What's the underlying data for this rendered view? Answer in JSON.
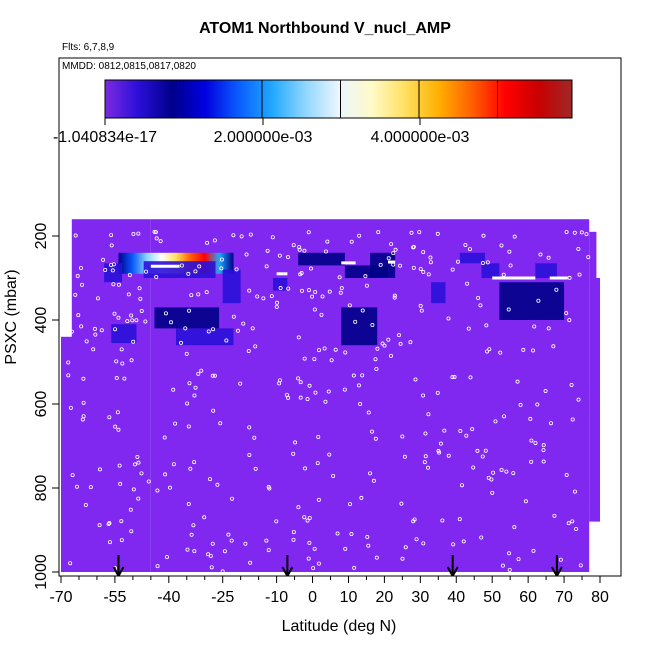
{
  "title": "ATOM1 Northbound V_nucl_AMP",
  "flights_note": "Flts: 6,7,8,9",
  "dates_note": "MMDD: 0812,0815,0817,0820",
  "colorbar": {
    "tick_labels": [
      "-1.040834e-17",
      "2.000000e-03",
      "4.000000e-03"
    ],
    "colors": [
      "#7b2be0",
      "#2a0fd8",
      "#00008a",
      "#0000e0",
      "#0a5cff",
      "#1fa8ff",
      "#8fd6ff",
      "#eaf6ff",
      "#fffac8",
      "#ffe060",
      "#ffb000",
      "#ff6000",
      "#ff0000",
      "#c80000",
      "#a02828"
    ]
  },
  "chart_data": {
    "type": "heatmap",
    "title": "ATOM1 Northbound V_nucl_AMP",
    "xlabel": "Latitude (deg N)",
    "ylabel": "PSXC (mbar)",
    "xlim": [
      -70,
      80
    ],
    "ylim": [
      1000,
      100
    ],
    "x_tick_labels": [
      "-70",
      "-55",
      "-40",
      "-25",
      "-10",
      "0",
      "10",
      "20",
      "30",
      "40",
      "50",
      "60",
      "70",
      "80"
    ],
    "y_tick_labels": [
      "200",
      "400",
      "600",
      "800",
      "1000"
    ],
    "background_color": "#8028f0",
    "arrows_latitude": [
      -54,
      -7,
      39,
      68
    ],
    "cells": [
      {
        "lat0": -54,
        "lat1": -22,
        "p0": 240,
        "p1": 290,
        "value": 0.0058
      },
      {
        "lat0": -58,
        "lat1": -53,
        "p0": 265,
        "p1": 310,
        "value": 0.0006
      },
      {
        "lat0": -47,
        "lat1": -27,
        "p0": 260,
        "p1": 300,
        "value": 0.0005
      },
      {
        "lat0": -44,
        "lat1": -26,
        "p0": 370,
        "p1": 420,
        "value": 0.0007
      },
      {
        "lat0": -38,
        "lat1": -22,
        "p0": 420,
        "p1": 460,
        "value": 0.0006
      },
      {
        "lat0": -56,
        "lat1": -49,
        "p0": 410,
        "p1": 455,
        "value": 0.0005
      },
      {
        "lat0": -25,
        "lat1": -20,
        "p0": 280,
        "p1": 360,
        "value": 0.0004
      },
      {
        "lat0": -11,
        "lat1": -7,
        "p0": 300,
        "p1": 330,
        "value": 0.0004
      },
      {
        "lat0": -4,
        "lat1": 9,
        "p0": 240,
        "p1": 270,
        "value": 0.0007
      },
      {
        "lat0": 9,
        "lat1": 21,
        "p0": 270,
        "p1": 300,
        "value": 0.0008
      },
      {
        "lat0": 8,
        "lat1": 18,
        "p0": 370,
        "p1": 460,
        "value": 0.0008
      },
      {
        "lat0": 16,
        "lat1": 23,
        "p0": 240,
        "p1": 300,
        "value": 0.0007
      },
      {
        "lat0": 33,
        "lat1": 37,
        "p0": 310,
        "p1": 360,
        "value": 0.0004
      },
      {
        "lat0": 41,
        "lat1": 48,
        "p0": 240,
        "p1": 265,
        "value": 0.0004
      },
      {
        "lat0": 47,
        "lat1": 52,
        "p0": 265,
        "p1": 300,
        "value": 0.0004
      },
      {
        "lat0": 52,
        "lat1": 70,
        "p0": 310,
        "p1": 350,
        "value": 0.0009
      },
      {
        "lat0": 52,
        "lat1": 70,
        "p0": 350,
        "p1": 400,
        "value": 0.0007
      },
      {
        "lat0": 62,
        "lat1": 68,
        "p0": 265,
        "p1": 300,
        "value": 0.0005
      }
    ]
  }
}
